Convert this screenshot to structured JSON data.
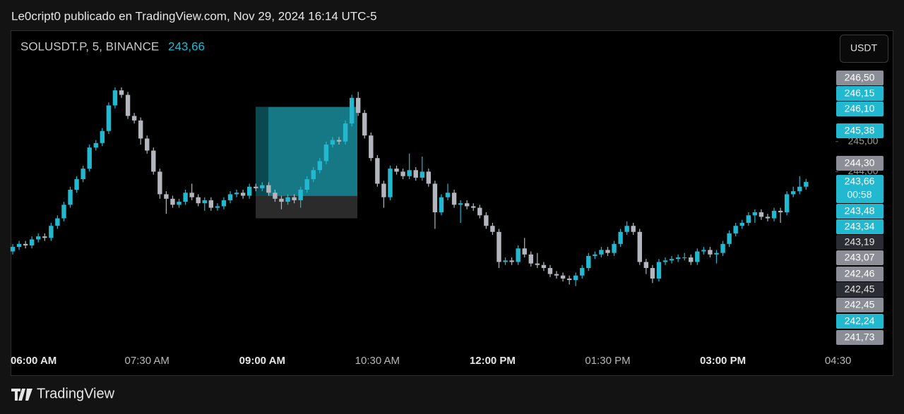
{
  "header": {
    "publisher": "Le0cript0 publicado en TradingView.com, Nov 29, 2024 16:14 UTC-5"
  },
  "footer": {
    "brand": "TradingView"
  },
  "toolbar": {
    "currency_button": "USDT"
  },
  "chart_data": {
    "type": "candlestick",
    "title": "SOLUSDT.P, 5, BINANCE",
    "last_price": {
      "value": 243.66,
      "label": "243,66"
    },
    "countdown": "00:58",
    "up_color": "#22b8cf",
    "down_color": "#b4b6bd",
    "open": [
      241.35,
      241.5,
      241.6,
      241.55,
      241.75,
      241.85,
      241.8,
      242.2,
      242.45,
      242.9,
      243.4,
      243.75,
      244.1,
      244.8,
      244.95,
      245.35,
      246.2,
      246.7,
      246.55,
      245.85,
      245.7,
      245.1,
      244.7,
      244.0,
      243.25,
      243.1,
      242.9,
      243.0,
      243.3,
      243.15,
      242.95,
      243.05,
      242.8,
      242.85,
      243.05,
      243.25,
      243.3,
      243.2,
      243.5,
      243.45,
      243.55,
      243.3,
      243.1,
      243.0,
      243.15,
      243.05,
      243.4,
      243.75,
      244.05,
      244.35,
      244.9,
      245.05,
      245.0,
      245.6,
      246.45,
      245.95,
      245.2,
      244.45,
      243.6,
      243.15,
      244.1,
      244.0,
      243.85,
      244.05,
      243.8,
      244.0,
      243.6,
      242.65,
      243.15,
      243.3,
      242.9,
      242.95,
      242.85,
      242.8,
      242.55,
      242.2,
      242.0,
      241.0,
      241.05,
      241.0,
      241.45,
      241.25,
      240.95,
      240.9,
      240.8,
      240.6,
      240.55,
      240.45,
      240.4,
      240.55,
      240.8,
      241.2,
      241.25,
      241.4,
      241.3,
      241.6,
      242.0,
      242.2,
      242.0,
      241.0,
      240.8,
      240.45,
      241.0,
      241.05,
      241.1,
      241.15,
      241.15,
      241.0,
      241.35,
      241.4,
      241.25,
      241.3,
      241.6,
      241.95,
      242.2,
      242.3,
      242.55,
      242.65,
      242.5,
      242.45,
      242.7,
      242.65,
      243.25,
      243.35,
      243.5
    ],
    "high": [
      241.6,
      241.7,
      241.7,
      241.85,
      241.95,
      241.95,
      242.3,
      242.55,
      243.0,
      243.5,
      243.85,
      244.2,
      244.9,
      245.05,
      245.45,
      246.3,
      246.8,
      246.8,
      246.65,
      245.95,
      245.8,
      245.2,
      244.8,
      244.1,
      243.35,
      243.2,
      243.1,
      243.4,
      243.6,
      243.25,
      243.15,
      243.15,
      242.95,
      243.15,
      243.35,
      243.4,
      243.4,
      243.6,
      243.6,
      243.65,
      243.65,
      243.4,
      243.2,
      243.25,
      243.25,
      243.5,
      243.85,
      244.15,
      244.45,
      245.0,
      245.15,
      245.15,
      245.7,
      246.55,
      246.65,
      246.05,
      245.3,
      244.55,
      243.7,
      244.2,
      244.2,
      244.1,
      244.6,
      244.15,
      244.5,
      244.1,
      243.7,
      243.25,
      243.6,
      243.4,
      243.05,
      243.05,
      242.95,
      242.9,
      242.65,
      242.3,
      242.1,
      241.15,
      241.15,
      241.55,
      241.8,
      241.35,
      241.3,
      241.0,
      240.9,
      240.7,
      240.65,
      240.55,
      240.65,
      240.9,
      241.3,
      241.35,
      241.5,
      241.5,
      241.7,
      242.1,
      242.35,
      242.3,
      242.1,
      241.1,
      240.9,
      241.1,
      241.15,
      241.2,
      241.25,
      241.3,
      241.25,
      241.45,
      241.5,
      241.5,
      241.4,
      241.7,
      242.05,
      242.3,
      242.4,
      242.65,
      242.75,
      242.75,
      242.6,
      242.8,
      242.8,
      243.35,
      243.5,
      243.85,
      243.76
    ],
    "low": [
      241.25,
      241.4,
      241.45,
      241.45,
      241.65,
      241.7,
      241.7,
      242.1,
      242.35,
      242.8,
      243.3,
      243.65,
      244.0,
      244.7,
      244.85,
      245.25,
      246.1,
      246.45,
      245.75,
      245.6,
      244.9,
      244.6,
      243.9,
      243.1,
      242.6,
      242.8,
      242.8,
      242.9,
      243.05,
      242.85,
      242.7,
      242.7,
      242.7,
      242.75,
      242.95,
      243.15,
      243.1,
      243.1,
      243.35,
      243.35,
      243.2,
      243.0,
      242.75,
      242.9,
      242.95,
      242.8,
      243.3,
      243.65,
      243.95,
      244.25,
      244.8,
      244.9,
      244.9,
      245.5,
      245.85,
      245.1,
      244.35,
      243.5,
      242.8,
      243.05,
      243.9,
      243.75,
      243.75,
      243.7,
      243.7,
      243.5,
      242.1,
      242.55,
      243.05,
      242.8,
      242.3,
      242.75,
      242.7,
      242.45,
      242.1,
      241.9,
      240.8,
      240.9,
      240.9,
      240.9,
      241.15,
      240.85,
      240.8,
      240.7,
      240.5,
      240.45,
      240.35,
      240.25,
      240.2,
      240.45,
      240.7,
      241.1,
      241.15,
      241.2,
      241.2,
      241.5,
      241.9,
      241.9,
      240.9,
      240.6,
      240.3,
      240.35,
      240.9,
      240.95,
      241.0,
      241.05,
      240.9,
      240.9,
      241.25,
      241.15,
      240.95,
      241.2,
      241.5,
      241.85,
      242.1,
      242.2,
      242.3,
      242.4,
      242.35,
      242.35,
      242.3,
      242.55,
      243.15,
      243.25,
      243.4
    ],
    "close": [
      241.5,
      241.6,
      241.55,
      241.75,
      241.85,
      241.8,
      242.2,
      242.45,
      242.9,
      243.4,
      243.75,
      244.1,
      244.8,
      244.95,
      245.35,
      246.2,
      246.7,
      246.55,
      245.85,
      245.7,
      245.1,
      244.7,
      244.0,
      243.25,
      243.1,
      242.9,
      243.0,
      243.3,
      243.15,
      242.95,
      243.05,
      242.8,
      242.85,
      243.05,
      243.25,
      243.3,
      243.2,
      243.5,
      243.45,
      243.55,
      243.3,
      243.1,
      243.0,
      243.15,
      243.05,
      243.4,
      243.75,
      244.05,
      244.35,
      244.9,
      245.05,
      245.0,
      245.6,
      246.45,
      245.95,
      245.2,
      244.45,
      243.6,
      243.15,
      244.1,
      244.0,
      243.85,
      244.05,
      243.8,
      244.0,
      243.6,
      242.65,
      243.15,
      243.3,
      242.9,
      242.95,
      242.85,
      242.8,
      242.55,
      242.2,
      242.0,
      241.0,
      241.05,
      241.0,
      241.45,
      241.25,
      240.95,
      240.9,
      240.8,
      240.6,
      240.55,
      240.45,
      240.4,
      240.55,
      240.8,
      241.2,
      241.25,
      241.4,
      241.3,
      241.6,
      242.0,
      242.2,
      242.0,
      241.0,
      240.8,
      240.45,
      241.0,
      241.05,
      241.1,
      241.15,
      241.15,
      241.0,
      241.35,
      241.4,
      241.25,
      241.3,
      241.6,
      241.95,
      242.2,
      242.3,
      242.55,
      242.65,
      242.5,
      242.45,
      242.7,
      242.65,
      243.25,
      243.35,
      243.5,
      243.66
    ],
    "xlim": [
      -0.33,
      128.6
    ],
    "xticks": [
      {
        "value": 3,
        "label": "06:00 AM",
        "bold": true
      },
      {
        "value": 21,
        "label": "07:30 AM",
        "bold": false
      },
      {
        "value": 39,
        "label": "09:00 AM",
        "bold": true
      },
      {
        "value": 57,
        "label": "10:30 AM",
        "bold": false
      },
      {
        "value": 75,
        "label": "12:00 PM",
        "bold": true
      },
      {
        "value": 93,
        "label": "01:30 PM",
        "bold": false
      },
      {
        "value": 111,
        "label": "03:00 PM",
        "bold": true
      },
      {
        "value": 129,
        "label": "04:30",
        "bold": false
      }
    ],
    "ylim": [
      238.2,
      248.67
    ],
    "yticks": [
      {
        "value": 245,
        "label": "245,00"
      },
      {
        "value": 244,
        "label": "244,00"
      }
    ],
    "price_labels": [
      {
        "value": 246.5,
        "label": "246,50",
        "color": "#8b8e96"
      },
      {
        "value": 246.15,
        "label": "246,15",
        "color": "#22b8cf"
      },
      {
        "value": 246.1,
        "label": "246,10",
        "color": "#22b8cf"
      },
      {
        "value": 245.38,
        "label": "245,38",
        "color": "#22b8cf"
      },
      {
        "value": 244.3,
        "label": "244,30",
        "color": "#8b8e96"
      },
      {
        "value": 243.48,
        "label": "243,48",
        "color": "#22b8cf"
      },
      {
        "value": 243.34,
        "label": "243,34",
        "color": "#22b8cf"
      },
      {
        "value": 243.19,
        "label": "243,19",
        "color": "#2a2d33"
      },
      {
        "value": 243.07,
        "label": "243,07",
        "color": "#8b8e96"
      },
      {
        "value": 242.46,
        "label": "242,46",
        "color": "#8b8e96"
      },
      {
        "value": 242.45,
        "label": "242,45",
        "color": "#2a2d33"
      },
      {
        "value": 242.45,
        "label": "242,45",
        "color": "#8b8e96"
      },
      {
        "value": 242.24,
        "label": "242,24",
        "color": "#22b8cf"
      },
      {
        "value": 241.73,
        "label": "241,73",
        "color": "#8b8e96"
      }
    ]
  }
}
